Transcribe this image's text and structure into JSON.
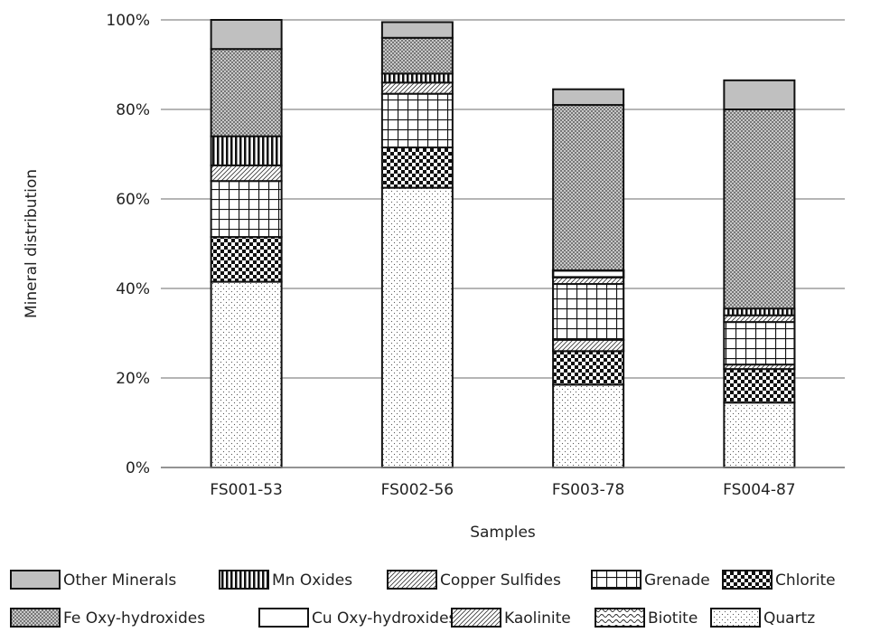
{
  "chart_data": {
    "type": "bar",
    "stacked": true,
    "normalized": true,
    "title": "",
    "xlabel": "Samples",
    "ylabel": "Mineral distribution",
    "ylim": [
      0,
      100
    ],
    "yticks": [
      "0%",
      "20%",
      "40%",
      "60%",
      "80%",
      "100%"
    ],
    "grid": true,
    "legend_position": "bottom",
    "categories": [
      "FS001-53",
      "FS002-56",
      "FS003-78",
      "FS004-87"
    ],
    "series": [
      {
        "name": "Quartz",
        "pattern": "dots-light",
        "values": [
          41.5,
          62.5,
          18.5,
          14.5
        ]
      },
      {
        "name": "Biotite",
        "pattern": "wave",
        "values": [
          0,
          0,
          0,
          0
        ]
      },
      {
        "name": "Kaolinite",
        "pattern": "hatch",
        "values": [
          0,
          0,
          0,
          0
        ]
      },
      {
        "name": "Chlorite",
        "pattern": "checker",
        "values": [
          10,
          9,
          7.5,
          7.5
        ]
      },
      {
        "name": "Grenade",
        "pattern": "grid",
        "values": [
          12.5,
          12,
          0,
          0
        ]
      },
      {
        "name": "Copper Sulfides",
        "pattern": "hatch",
        "values": [
          3.5,
          2.5,
          2.5,
          0
        ]
      },
      {
        "name": "Cu Oxy-hydroxides",
        "pattern": "horizontal",
        "values": [
          0,
          0,
          0,
          0
        ]
      },
      {
        "name": "Mn Oxides",
        "pattern": "vertical",
        "values": [
          6.5,
          2,
          0,
          0
        ]
      },
      {
        "name": "Fe Oxy-hydroxides",
        "pattern": "dense",
        "values": [
          19.5,
          8,
          52.5,
          58
        ]
      },
      {
        "name": "Other Minerals",
        "pattern": "solid-gray",
        "values": [
          6.5,
          3.5,
          3.5,
          6.5
        ]
      }
    ],
    "inner_segments": {
      "FS003-78": [
        {
          "series": "Grenade",
          "from": 28.5,
          "to": 41
        },
        {
          "series": "Kaolinite",
          "from": 26,
          "to": 28.5
        },
        {
          "series": "Copper Sulfides",
          "from": 41,
          "to": 42.5
        },
        {
          "series": "Cu Oxy-hydroxides",
          "from": 42.5,
          "to": 44
        }
      ],
      "FS004-87": [
        {
          "series": "Kaolinite",
          "from": 22,
          "to": 23
        },
        {
          "series": "Grenade",
          "from": 23,
          "to": 32.5
        },
        {
          "series": "Copper Sulfides",
          "from": 32.5,
          "to": 34
        },
        {
          "series": "Mn Oxides",
          "from": 34,
          "to": 35.5
        }
      ]
    },
    "legend": [
      [
        "Other Minerals",
        "Mn Oxides",
        "Copper Sulfides",
        "Grenade",
        "Chlorite"
      ],
      [
        "Fe Oxy-hydroxides",
        "Cu Oxy-hydroxides",
        "Kaolinite",
        "Biotite",
        "Quartz"
      ]
    ]
  }
}
